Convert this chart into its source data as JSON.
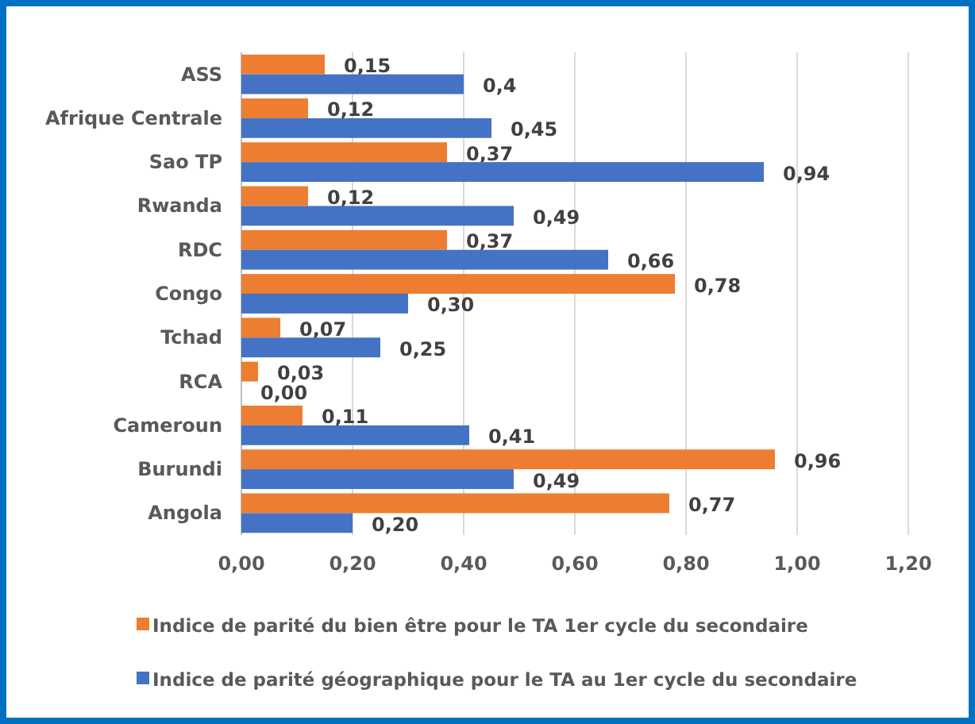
{
  "chart_data": {
    "type": "bar",
    "orientation": "horizontal",
    "categories": [
      "ASS",
      "Afrique Centrale",
      "Sao TP",
      "Rwanda",
      "RDC",
      "Congo",
      "Tchad",
      "RCA",
      "Cameroun",
      "Burundi",
      "Angola"
    ],
    "series": [
      {
        "name": "Indice de parité du bien être pour le TA 1er cycle du secondaire",
        "color": "#ed7d31",
        "values": [
          0.15,
          0.12,
          0.37,
          0.12,
          0.37,
          0.78,
          0.07,
          0.03,
          0.11,
          0.96,
          0.77
        ],
        "value_labels": [
          "0,15",
          "0,12",
          "0,37",
          "0,12",
          "0,37",
          "0,78",
          "0,07",
          "0,03",
          "0,11",
          "0,96",
          "0,77"
        ]
      },
      {
        "name": "Indice de parité géographique pour le TA au 1er cycle du secondaire",
        "color": "#4472c4",
        "values": [
          0.4,
          0.45,
          0.94,
          0.49,
          0.66,
          0.3,
          0.25,
          0,
          0.41,
          0.49,
          0.2
        ],
        "value_labels": [
          "0,4",
          "0,45",
          "0,94",
          "0,49",
          "0,66",
          "0,30",
          "0,25",
          "0,00",
          "0,41",
          "0,49",
          "0,20"
        ]
      }
    ],
    "xlim": [
      0,
      1.2
    ],
    "xticks": [
      {
        "value": 0,
        "label": "0,00"
      },
      {
        "value": 0.2,
        "label": "0,20"
      },
      {
        "value": 0.4,
        "label": "0,40"
      },
      {
        "value": 0.6,
        "label": "0,60"
      },
      {
        "value": 0.8,
        "label": "0,80"
      },
      {
        "value": 1,
        "label": "1,00"
      },
      {
        "value": 1.2,
        "label": "1,20"
      }
    ],
    "grid": "x",
    "legend": "bottom"
  }
}
